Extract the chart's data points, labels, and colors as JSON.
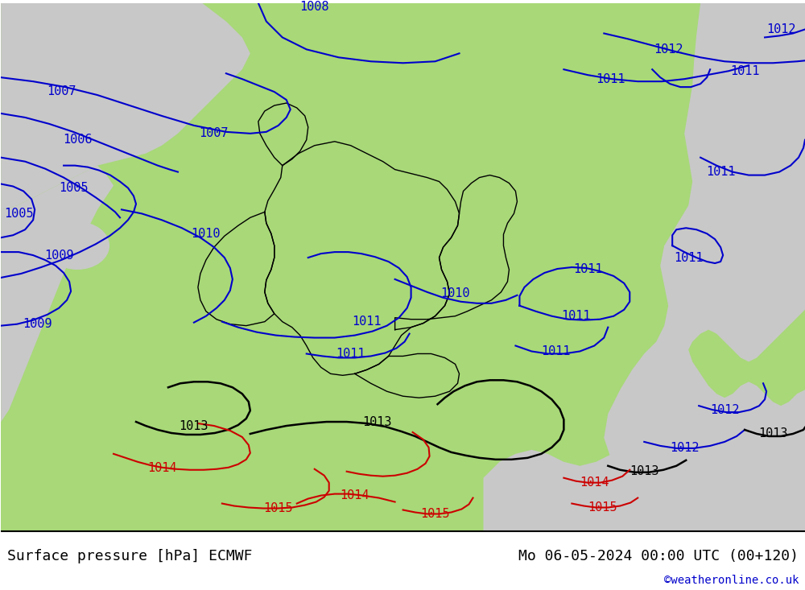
{
  "title_left": "Surface pressure [hPa] ECMWF",
  "title_right": "Mo 06-05-2024 00:00 UTC (00+120)",
  "watermark": "©weatheronline.co.uk",
  "background_color": "#ffffff",
  "land_color_green": "#a8d878",
  "land_color_gray": "#c8c8c8",
  "border_color": "#000000",
  "isobar_blue": "#0000cc",
  "isobar_black": "#000000",
  "isobar_red": "#cc0000",
  "font_size_labels": 11,
  "font_size_bottom": 13,
  "font_size_watermark": 10,
  "bottom_bar_color": "#000000",
  "bottom_text_color": "#000000",
  "watermark_color": "#0000cc"
}
